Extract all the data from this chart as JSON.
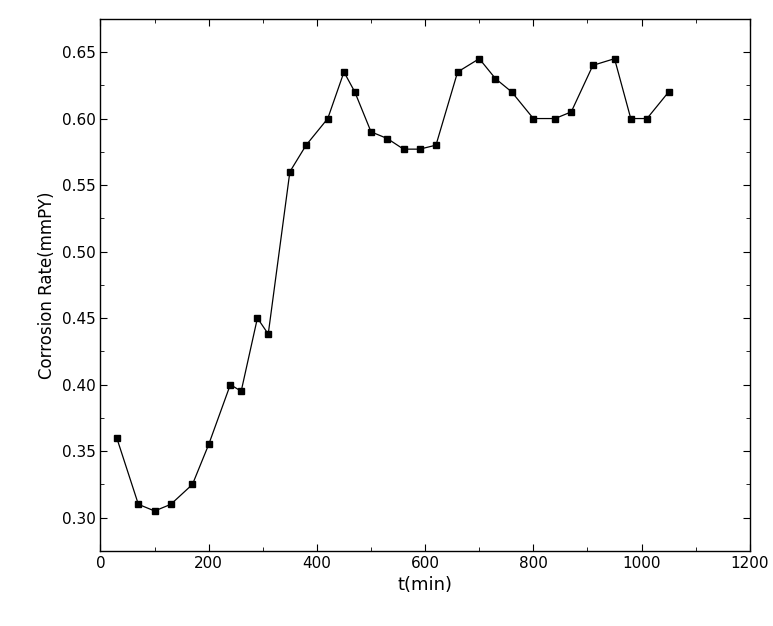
{
  "x": [
    30,
    70,
    100,
    130,
    170,
    200,
    240,
    260,
    290,
    310,
    350,
    380,
    420,
    450,
    470,
    500,
    530,
    560,
    590,
    620,
    660,
    700,
    730,
    760,
    800,
    840,
    870,
    910,
    950,
    980,
    1010,
    1050
  ],
  "y": [
    0.36,
    0.31,
    0.305,
    0.31,
    0.325,
    0.355,
    0.4,
    0.395,
    0.45,
    0.438,
    0.56,
    0.58,
    0.6,
    0.635,
    0.62,
    0.59,
    0.585,
    0.577,
    0.577,
    0.58,
    0.635,
    0.645,
    0.63,
    0.62,
    0.6,
    0.6,
    0.605,
    0.64,
    0.645,
    0.6,
    0.6,
    0.62
  ],
  "xlabel": "t(min)",
  "ylabel": "Corrosion Rate(mmPY)",
  "xlim": [
    0,
    1200
  ],
  "ylim": [
    0.275,
    0.675
  ],
  "xticks": [
    0,
    200,
    400,
    600,
    800,
    1000,
    1200
  ],
  "yticks": [
    0.3,
    0.35,
    0.4,
    0.45,
    0.5,
    0.55,
    0.6,
    0.65
  ],
  "line_color": "#000000",
  "marker_color": "#000000",
  "background_color": "#ffffff",
  "figsize": [
    7.73,
    6.26
  ],
  "dpi": 100
}
